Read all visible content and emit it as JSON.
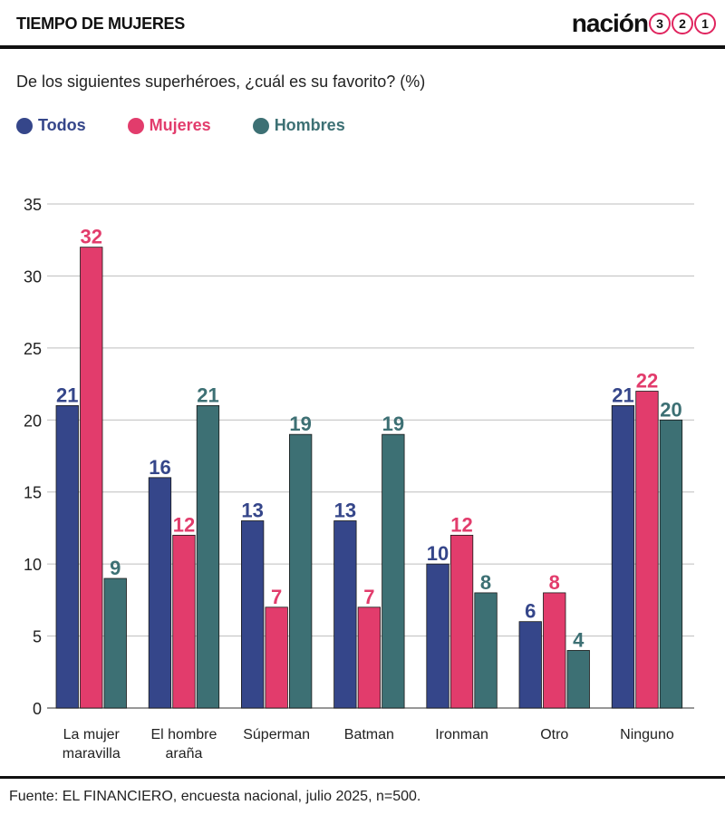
{
  "header": {
    "section_title": "TIEMPO DE MUJERES",
    "brand_name": "nación",
    "brand_digits": [
      "3",
      "2",
      "1"
    ],
    "brand_accent": "#e0245e"
  },
  "question": "De los siguientes superhéroes, ¿cuál es su favorito? (%)",
  "source": "Fuente: EL FINANCIERO, encuesta nacional, julio 2025, n=500.",
  "chart_data": {
    "type": "bar",
    "categories": [
      [
        "La mujer",
        "maravilla"
      ],
      [
        "El hombre",
        "araña"
      ],
      [
        "Súperman"
      ],
      [
        "Batman"
      ],
      [
        "Ironman"
      ],
      [
        "Otro"
      ],
      [
        "Ninguno"
      ]
    ],
    "series": [
      {
        "name": "Todos",
        "color": "#35468a",
        "values": [
          21,
          16,
          13,
          13,
          10,
          6,
          21
        ]
      },
      {
        "name": "Mujeres",
        "color": "#e23c6c",
        "values": [
          32,
          12,
          7,
          7,
          12,
          8,
          22
        ]
      },
      {
        "name": "Hombres",
        "color": "#3d7074",
        "values": [
          9,
          21,
          19,
          19,
          8,
          4,
          20
        ]
      }
    ],
    "ylim": [
      0,
      35
    ],
    "yticks": [
      0,
      5,
      10,
      15,
      20,
      25,
      30,
      35
    ],
    "grid": true,
    "legend": "top-left"
  }
}
